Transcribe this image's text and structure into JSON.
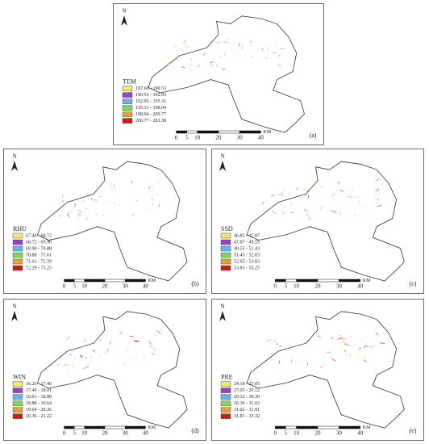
{
  "colors": [
    "#f5e86a",
    "#9b3fd1",
    "#5bb8e8",
    "#7ed957",
    "#f0a030",
    "#c81e1e"
  ],
  "panels": [
    {
      "label": "(a)",
      "north": "N",
      "legend_title": "TEM",
      "legend": [
        "187.60 - 190.53",
        "190.53 - 192.95",
        "192.95 - 195.31",
        "195.31 - 198.04",
        "198.04 - 200.77",
        "200.77 - 203.38"
      ],
      "scale": [
        "0",
        "5",
        "10",
        "20",
        "30",
        "40"
      ],
      "unit": "KM"
    },
    {
      "label": "(b)",
      "north": "N",
      "legend_title": "RHU",
      "legend": [
        "67.44 - 68.72",
        "68.72 - 69.90",
        "69.90 - 70.88",
        "70.88 - 71.61",
        "71.61 - 72.29",
        "72.29 - 73.25"
      ],
      "scale": [
        "0",
        "5",
        "10",
        "20",
        "30",
        "40"
      ],
      "unit": "KM"
    },
    {
      "label": "(c)",
      "north": "N",
      "legend_title": "SSD",
      "legend": [
        "46.85 - 47.87",
        "47.87 - 49.55",
        "49.55 - 51.43",
        "51.43 - 52.65",
        "52.65 - 53.83",
        "53.83 - 55.25"
      ],
      "scale": [
        "0",
        "5",
        "10",
        "20",
        "30",
        "40"
      ],
      "unit": "KM"
    },
    {
      "label": "(d)",
      "north": "N",
      "legend_title": "WIN",
      "legend": [
        "16.26 - 17.40",
        "17.40 - 18.01",
        "18.01 - 18.88",
        "18.88 - 19.64",
        "19.64 - 20.36",
        "20.36 - 21.22"
      ],
      "scale": [
        "0",
        "5",
        "10",
        "20",
        "30",
        "40"
      ],
      "unit": "KM"
    },
    {
      "label": "(e)",
      "north": "N",
      "legend_title": "PRE",
      "legend": [
        "24.18 - 27.05",
        "27.05 - 29.12",
        "29.12 - 30.30",
        "30.30 - 31.02",
        "31.02 - 31.81",
        "31.81 - 33.32"
      ],
      "scale": [
        "0",
        "5",
        "10",
        "20",
        "30",
        "40"
      ],
      "unit": "KM"
    }
  ]
}
